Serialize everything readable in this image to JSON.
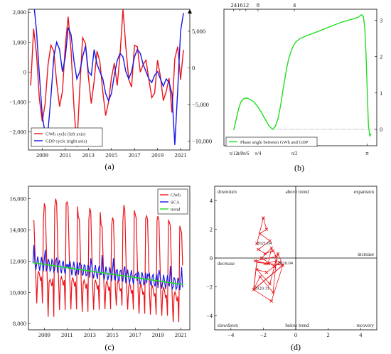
{
  "chart_data": [
    {
      "id": "a",
      "type": "line",
      "panel_label": "(a)",
      "x_ticks": [
        "2009",
        "2011",
        "2013",
        "2015",
        "2017",
        "2019",
        "2021"
      ],
      "xlim": [
        2007.8,
        2021.8
      ],
      "y_left": {
        "ticks": [
          "−2,000",
          "−1,000",
          "0",
          "1,000",
          "2,000"
        ],
        "ylim": [
          -2600,
          2100
        ]
      },
      "y_right": {
        "ticks": [
          "−10,000",
          "−5,000",
          "0",
          "5,000"
        ],
        "ylim": [
          -11200,
          8000
        ]
      },
      "legend_position": "bottom-left",
      "series": [
        {
          "name": "GWh cycle (left axis)",
          "color": "#e8151b",
          "axis": "left",
          "x": [
            2008.0,
            2008.25,
            2008.5,
            2008.75,
            2009.0,
            2009.25,
            2009.5,
            2009.75,
            2010.0,
            2010.25,
            2010.5,
            2010.75,
            2011.0,
            2011.25,
            2011.5,
            2011.75,
            2012.0,
            2012.25,
            2012.5,
            2012.75,
            2013.0,
            2013.25,
            2013.5,
            2013.75,
            2014.0,
            2014.25,
            2014.5,
            2014.75,
            2015.0,
            2015.25,
            2015.5,
            2015.75,
            2016.0,
            2016.25,
            2016.5,
            2016.75,
            2017.0,
            2017.25,
            2017.5,
            2017.75,
            2018.0,
            2018.25,
            2018.5,
            2018.75,
            2019.0,
            2019.25,
            2019.5,
            2019.75,
            2020.0,
            2020.25,
            2020.5,
            2020.75,
            2021.0,
            2021.25
          ],
          "y": [
            -450,
            1450,
            600,
            -900,
            -1650,
            -1050,
            250,
            900,
            700,
            -350,
            -1150,
            -650,
            900,
            1850,
            700,
            -1150,
            -2500,
            -550,
            1150,
            950,
            -150,
            -1050,
            -300,
            700,
            350,
            -650,
            -1450,
            -1000,
            -200,
            300,
            -450,
            600,
            2100,
            850,
            -250,
            -500,
            900,
            850,
            0,
            250,
            400,
            -250,
            -850,
            -700,
            400,
            -150,
            -950,
            -650,
            -200,
            -1350,
            450,
            850,
            -250,
            750
          ]
        },
        {
          "name": "GDP cycle (right axis)",
          "color": "#1717e8",
          "axis": "right",
          "x": [
            2008.0,
            2008.25,
            2008.5,
            2008.75,
            2009.0,
            2009.25,
            2009.5,
            2009.75,
            2010.0,
            2010.25,
            2010.5,
            2010.75,
            2011.0,
            2011.25,
            2011.5,
            2011.75,
            2012.0,
            2012.25,
            2012.5,
            2012.75,
            2013.0,
            2013.25,
            2013.5,
            2013.75,
            2014.0,
            2014.25,
            2014.5,
            2014.75,
            2015.0,
            2015.25,
            2015.5,
            2015.75,
            2016.0,
            2016.25,
            2016.5,
            2016.75,
            2017.0,
            2017.25,
            2017.5,
            2017.75,
            2018.0,
            2018.25,
            2018.5,
            2018.75,
            2019.0,
            2019.25,
            2019.5,
            2019.75,
            2020.0,
            2020.25,
            2020.5,
            2020.75,
            2021.0,
            2021.25
          ],
          "y": [
            9500,
            9000,
            5000,
            -1000,
            -6500,
            -9000,
            -8500,
            -4000,
            1500,
            3500,
            2500,
            -500,
            1500,
            5500,
            4500,
            1000,
            -1500,
            -500,
            1500,
            3000,
            -500,
            -1000,
            2500,
            500,
            -500,
            -1500,
            -3500,
            -4500,
            -3500,
            -1000,
            1000,
            2000,
            1500,
            -500,
            -1500,
            -500,
            1500,
            2500,
            2000,
            500,
            -500,
            -1500,
            -2000,
            -1000,
            -500,
            -1500,
            -2500,
            -1500,
            -2000,
            -3500,
            -10500,
            -3000,
            5000,
            7500
          ]
        }
      ]
    },
    {
      "id": "b",
      "type": "line",
      "panel_label": "(b)",
      "top_ticks": [
        "24",
        "16",
        "12",
        "8",
        "4"
      ],
      "bottom_ticks": [
        "π/12",
        "π/8",
        "π/6",
        "π/4",
        "π/2",
        "π"
      ],
      "bottom_tick_values": [
        0.2618,
        0.3927,
        0.5236,
        0.7854,
        1.5708,
        3.1416
      ],
      "xlim": [
        0.05,
        3.35
      ],
      "right_ticks": [
        "0",
        "1",
        "2",
        "3"
      ],
      "ylim": [
        -0.45,
        3.3
      ],
      "legend_position": "bottom-left",
      "series": [
        {
          "name": "Phase angle between GWh and GDP",
          "color": "#22dd22",
          "x": [
            0.2618,
            0.3,
            0.34,
            0.38,
            0.42,
            0.48,
            0.55,
            0.62,
            0.7,
            0.78,
            0.86,
            0.94,
            1.02,
            1.1,
            1.16,
            1.22,
            1.28,
            1.34,
            1.4,
            1.45,
            1.5,
            1.55,
            1.6,
            1.7,
            1.85,
            2.0,
            2.2,
            2.4,
            2.6,
            2.8,
            2.95,
            3.02,
            3.06,
            3.09,
            3.12,
            3.15,
            3.17,
            3.2,
            3.23
          ],
          "y": [
            -0.02,
            0.2,
            0.42,
            0.62,
            0.76,
            0.85,
            0.86,
            0.82,
            0.75,
            0.62,
            0.46,
            0.28,
            0.1,
            0.0,
            0.08,
            0.3,
            0.7,
            1.2,
            1.65,
            1.95,
            2.15,
            2.3,
            2.4,
            2.5,
            2.58,
            2.65,
            2.75,
            2.85,
            2.95,
            3.02,
            3.08,
            3.15,
            3.1,
            2.8,
            2.0,
            0.8,
            0.1,
            -0.18,
            -0.12
          ]
        }
      ]
    },
    {
      "id": "c",
      "type": "line",
      "panel_label": "(c)",
      "x_ticks": [
        "2009",
        "2011",
        "2013",
        "2015",
        "2017",
        "2019",
        "2021"
      ],
      "xlim": [
        2007.6,
        2021.8
      ],
      "y_ticks": [
        "8,000",
        "10,000",
        "12,000",
        "14,000",
        "16,000"
      ],
      "ylim": [
        7600,
        16800
      ],
      "legend_position": "top-right",
      "series": [
        {
          "name": "GWh",
          "color": "#e8151b"
        },
        {
          "name": "SCA",
          "color": "#1717e8"
        },
        {
          "name": "trend",
          "color": "#22dd22",
          "x": [
            2008.0,
            2021.2
          ],
          "y": [
            11900,
            10500
          ]
        }
      ],
      "seasonal_peaks": [
        {
          "year": 2008.0,
          "high": 14600,
          "low": 9300
        },
        {
          "year": 2009.0,
          "high": 15700,
          "low": 8400
        },
        {
          "year": 2010.0,
          "high": 16000,
          "low": 8800
        },
        {
          "year": 2011.0,
          "high": 15800,
          "low": 8800
        },
        {
          "year": 2012.0,
          "high": 14800,
          "low": 8600
        },
        {
          "year": 2013.0,
          "high": 15400,
          "low": 8700
        },
        {
          "year": 2014.0,
          "high": 14300,
          "low": 8700
        },
        {
          "year": 2015.0,
          "high": 14800,
          "low": 8900
        },
        {
          "year": 2016.0,
          "high": 15600,
          "low": 8600
        },
        {
          "year": 2017.0,
          "high": 15000,
          "low": 8600
        },
        {
          "year": 2018.0,
          "high": 14900,
          "low": 8500
        },
        {
          "year": 2019.0,
          "high": 14900,
          "low": 8400
        },
        {
          "year": 2020.0,
          "high": 14500,
          "low": 7950
        },
        {
          "year": 2021.0,
          "high": 14000,
          "low": 8500
        }
      ]
    },
    {
      "id": "d",
      "type": "scatter",
      "panel_label": "(d)",
      "x_ticks": [
        "−4",
        "−2",
        "0",
        "2",
        "4"
      ],
      "y_ticks": [
        "−4",
        "−2",
        "0",
        "2",
        "4"
      ],
      "xlim": [
        -5,
        5
      ],
      "ylim": [
        -5,
        5
      ],
      "quadrant_labels": [
        "downturn",
        "above trend",
        "expansion",
        "decrease",
        "increase",
        "slowdown",
        "below trend",
        "recovery"
      ],
      "point_labels": [
        {
          "text": "2021.04",
          "x": -2.4,
          "y": 0.95
        },
        {
          "text": "2020.04",
          "x": -1.1,
          "y": -0.45
        },
        {
          "text": "2020.11",
          "x": -2.55,
          "y": -2.2
        }
      ],
      "series": [
        {
          "name": "",
          "color": "#e8151b",
          "x": [
            -2.4,
            -2.0,
            -1.8,
            -2.2,
            -1.6,
            -2.3,
            -1.9,
            -1.4,
            -1.2,
            -2.5,
            -1.7,
            -1.5,
            -2.1,
            -1.3,
            -1.0,
            -1.8,
            -2.4,
            -1.6,
            -1.1,
            -0.8,
            -1.5,
            -2.6,
            -2.2,
            -1.4,
            -1.2,
            -1.9
          ],
          "y": [
            1.0,
            2.8,
            2.0,
            1.7,
            1.2,
            0.6,
            0.3,
            0.5,
            0.1,
            -0.2,
            -0.4,
            0.7,
            0.0,
            -0.6,
            -0.3,
            -1.0,
            -0.8,
            -1.8,
            0.3,
            -0.5,
            -3.0,
            -2.2,
            -1.3,
            -2.4,
            -0.2,
            -0.4
          ]
        }
      ]
    }
  ]
}
